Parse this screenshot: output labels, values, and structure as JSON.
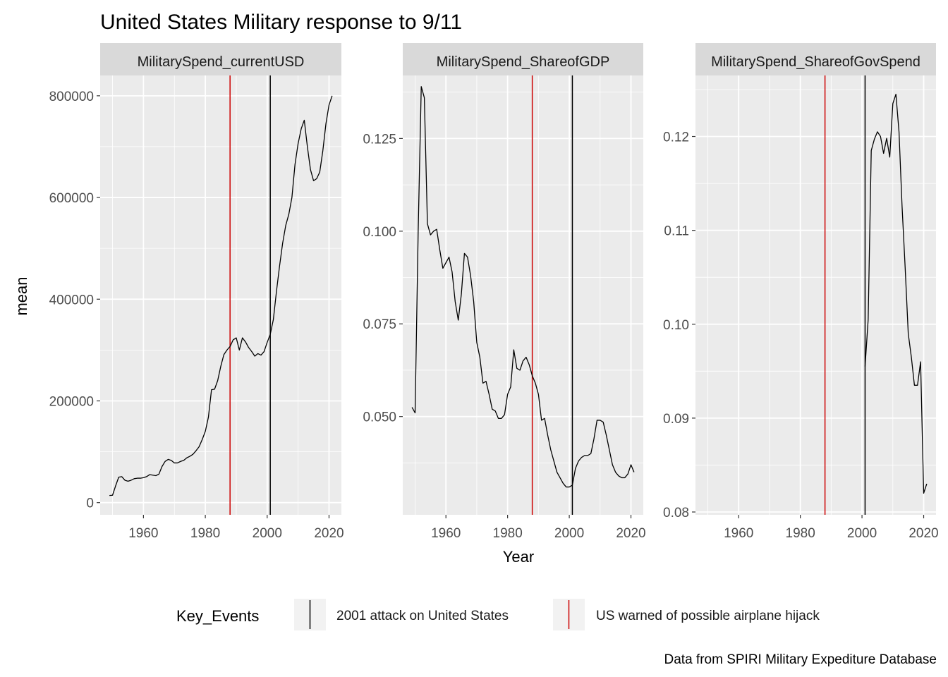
{
  "title": "United States Military response to 9/11",
  "ylabel": "mean",
  "xlabel": "Year",
  "caption": "Data from SPIRI Military Expediture Database",
  "legend": {
    "title": "Key_Events",
    "position": "bottom",
    "items": [
      {
        "label": "2001 attack on United States",
        "color": "#000000",
        "x": 2001
      },
      {
        "label": "US warned of possible airplane hijack",
        "color": "#cc0000",
        "x": 1988
      }
    ]
  },
  "chart_data": [
    {
      "type": "line",
      "facet": "MilitarySpend_currentUSD",
      "xlim": [
        1946,
        2024
      ],
      "ylim": [
        -24000,
        840000
      ],
      "xticks": [
        1960,
        1980,
        2000,
        2020
      ],
      "yticks": [
        0,
        200000,
        400000,
        600000,
        800000
      ],
      "ytick_labels": [
        "0",
        "200000",
        "400000",
        "600000",
        "800000"
      ],
      "grid": true,
      "x": [
        1949,
        1950,
        1951,
        1952,
        1953,
        1954,
        1955,
        1956,
        1957,
        1958,
        1959,
        1960,
        1961,
        1962,
        1963,
        1964,
        1965,
        1966,
        1967,
        1968,
        1969,
        1970,
        1971,
        1972,
        1973,
        1974,
        1975,
        1976,
        1977,
        1978,
        1979,
        1980,
        1981,
        1982,
        1983,
        1984,
        1985,
        1986,
        1987,
        1988,
        1989,
        1990,
        1991,
        1992,
        1993,
        1994,
        1995,
        1996,
        1997,
        1998,
        1999,
        2000,
        2001,
        2002,
        2003,
        2004,
        2005,
        2006,
        2007,
        2008,
        2009,
        2010,
        2011,
        2012,
        2013,
        2014,
        2015,
        2016,
        2017,
        2018,
        2019,
        2020,
        2021
      ],
      "y": [
        14000,
        14500,
        33000,
        50000,
        51000,
        44000,
        42000,
        44000,
        47000,
        48000,
        48000,
        49000,
        51000,
        55000,
        54000,
        53000,
        56000,
        71000,
        81000,
        85000,
        83000,
        78000,
        78000,
        81000,
        83000,
        88000,
        91000,
        95000,
        102000,
        110000,
        124000,
        140000,
        168000,
        222000,
        223000,
        240000,
        268000,
        291000,
        300000,
        307000,
        320000,
        324000,
        300000,
        324000,
        316000,
        305000,
        297000,
        288000,
        293000,
        290000,
        297000,
        315000,
        331000,
        360000,
        415000,
        465000,
        510000,
        545000,
        567000,
        600000,
        665000,
        706000,
        735000,
        752000,
        700000,
        655000,
        633000,
        637000,
        650000,
        692000,
        745000,
        782000,
        800000
      ]
    },
    {
      "type": "line",
      "facet": "MilitarySpend_ShareofGDP",
      "xlim": [
        1946,
        2024
      ],
      "ylim": [
        0.0235,
        0.142
      ],
      "xticks": [
        1960,
        1980,
        2000,
        2020
      ],
      "yticks": [
        0.05,
        0.075,
        0.1,
        0.125
      ],
      "ytick_labels": [
        "0.050",
        "0.075",
        "0.100",
        "0.125"
      ],
      "grid": true,
      "x": [
        1949,
        1950,
        1951,
        1952,
        1953,
        1954,
        1955,
        1956,
        1957,
        1958,
        1959,
        1960,
        1961,
        1962,
        1963,
        1964,
        1965,
        1966,
        1967,
        1968,
        1969,
        1970,
        1971,
        1972,
        1973,
        1974,
        1975,
        1976,
        1977,
        1978,
        1979,
        1980,
        1981,
        1982,
        1983,
        1984,
        1985,
        1986,
        1987,
        1988,
        1989,
        1990,
        1991,
        1992,
        1993,
        1994,
        1995,
        1996,
        1997,
        1998,
        1999,
        2000,
        2001,
        2002,
        2003,
        2004,
        2005,
        2006,
        2007,
        2008,
        2009,
        2010,
        2011,
        2012,
        2013,
        2014,
        2015,
        2016,
        2017,
        2018,
        2019,
        2020,
        2021
      ],
      "y": [
        0.0525,
        0.051,
        0.1,
        0.139,
        0.136,
        0.102,
        0.099,
        0.1,
        0.1005,
        0.095,
        0.09,
        0.0915,
        0.093,
        0.089,
        0.081,
        0.076,
        0.083,
        0.094,
        0.093,
        0.088,
        0.081,
        0.07,
        0.066,
        0.059,
        0.0595,
        0.056,
        0.052,
        0.0515,
        0.0495,
        0.0495,
        0.0505,
        0.056,
        0.058,
        0.068,
        0.063,
        0.0625,
        0.065,
        0.066,
        0.064,
        0.061,
        0.059,
        0.056,
        0.049,
        0.0495,
        0.045,
        0.041,
        0.038,
        0.035,
        0.0335,
        0.032,
        0.031,
        0.031,
        0.0315,
        0.036,
        0.038,
        0.039,
        0.0395,
        0.0395,
        0.04,
        0.044,
        0.049,
        0.049,
        0.0485,
        0.045,
        0.041,
        0.037,
        0.035,
        0.034,
        0.0335,
        0.0335,
        0.0345,
        0.037,
        0.035
      ]
    },
    {
      "type": "line",
      "facet": "MilitarySpend_ShareofGovSpend",
      "xlim": [
        1946,
        2024
      ],
      "ylim": [
        0.0797,
        0.1265
      ],
      "xticks": [
        1960,
        1980,
        2000,
        2020
      ],
      "yticks": [
        0.08,
        0.09,
        0.1,
        0.11,
        0.12
      ],
      "ytick_labels": [
        "0.08",
        "0.09",
        "0.10",
        "0.11",
        "0.12"
      ],
      "grid": true,
      "x": [
        2001,
        2002,
        2003,
        2004,
        2005,
        2006,
        2007,
        2008,
        2009,
        2010,
        2011,
        2012,
        2013,
        2014,
        2015,
        2016,
        2017,
        2018,
        2019,
        2020,
        2021
      ],
      "y": [
        0.0955,
        0.1005,
        0.1185,
        0.1197,
        0.1205,
        0.12,
        0.1182,
        0.1198,
        0.1178,
        0.1235,
        0.1245,
        0.1205,
        0.1125,
        0.106,
        0.099,
        0.0965,
        0.0935,
        0.0935,
        0.096,
        0.082,
        0.083
      ]
    }
  ]
}
